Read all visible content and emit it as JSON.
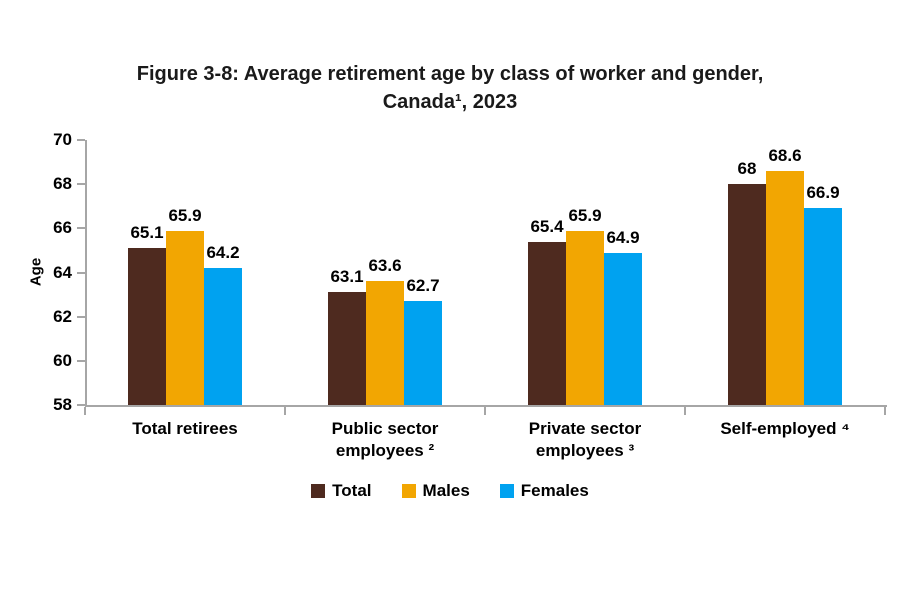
{
  "title": "Figure 3-8: Average retirement age by class of worker and gender,\nCanada¹, 2023",
  "chart_data": {
    "type": "bar",
    "title": "Figure 3-8: Average retirement age by class of worker and gender, Canada¹, 2023",
    "xlabel": "",
    "ylabel": "Age",
    "ylim": [
      58,
      70
    ],
    "yticks": [
      58,
      60,
      62,
      64,
      66,
      68,
      70
    ],
    "grid": false,
    "legend_position": "bottom",
    "axis_color": "#A6A6A6",
    "categories": [
      "Total retirees",
      "Public sector\nemployees ²",
      "Private sector\nemployees ³",
      "Self-employed ⁴"
    ],
    "series": [
      {
        "name": "Total",
        "color": "#4E2A1F",
        "values": [
          65.1,
          63.1,
          65.4,
          68
        ]
      },
      {
        "name": "Males",
        "color": "#F2A602",
        "values": [
          65.9,
          63.6,
          65.9,
          68.6
        ]
      },
      {
        "name": "Females",
        "color": "#00A2F0",
        "values": [
          64.2,
          62.7,
          64.9,
          66.9
        ]
      }
    ]
  }
}
